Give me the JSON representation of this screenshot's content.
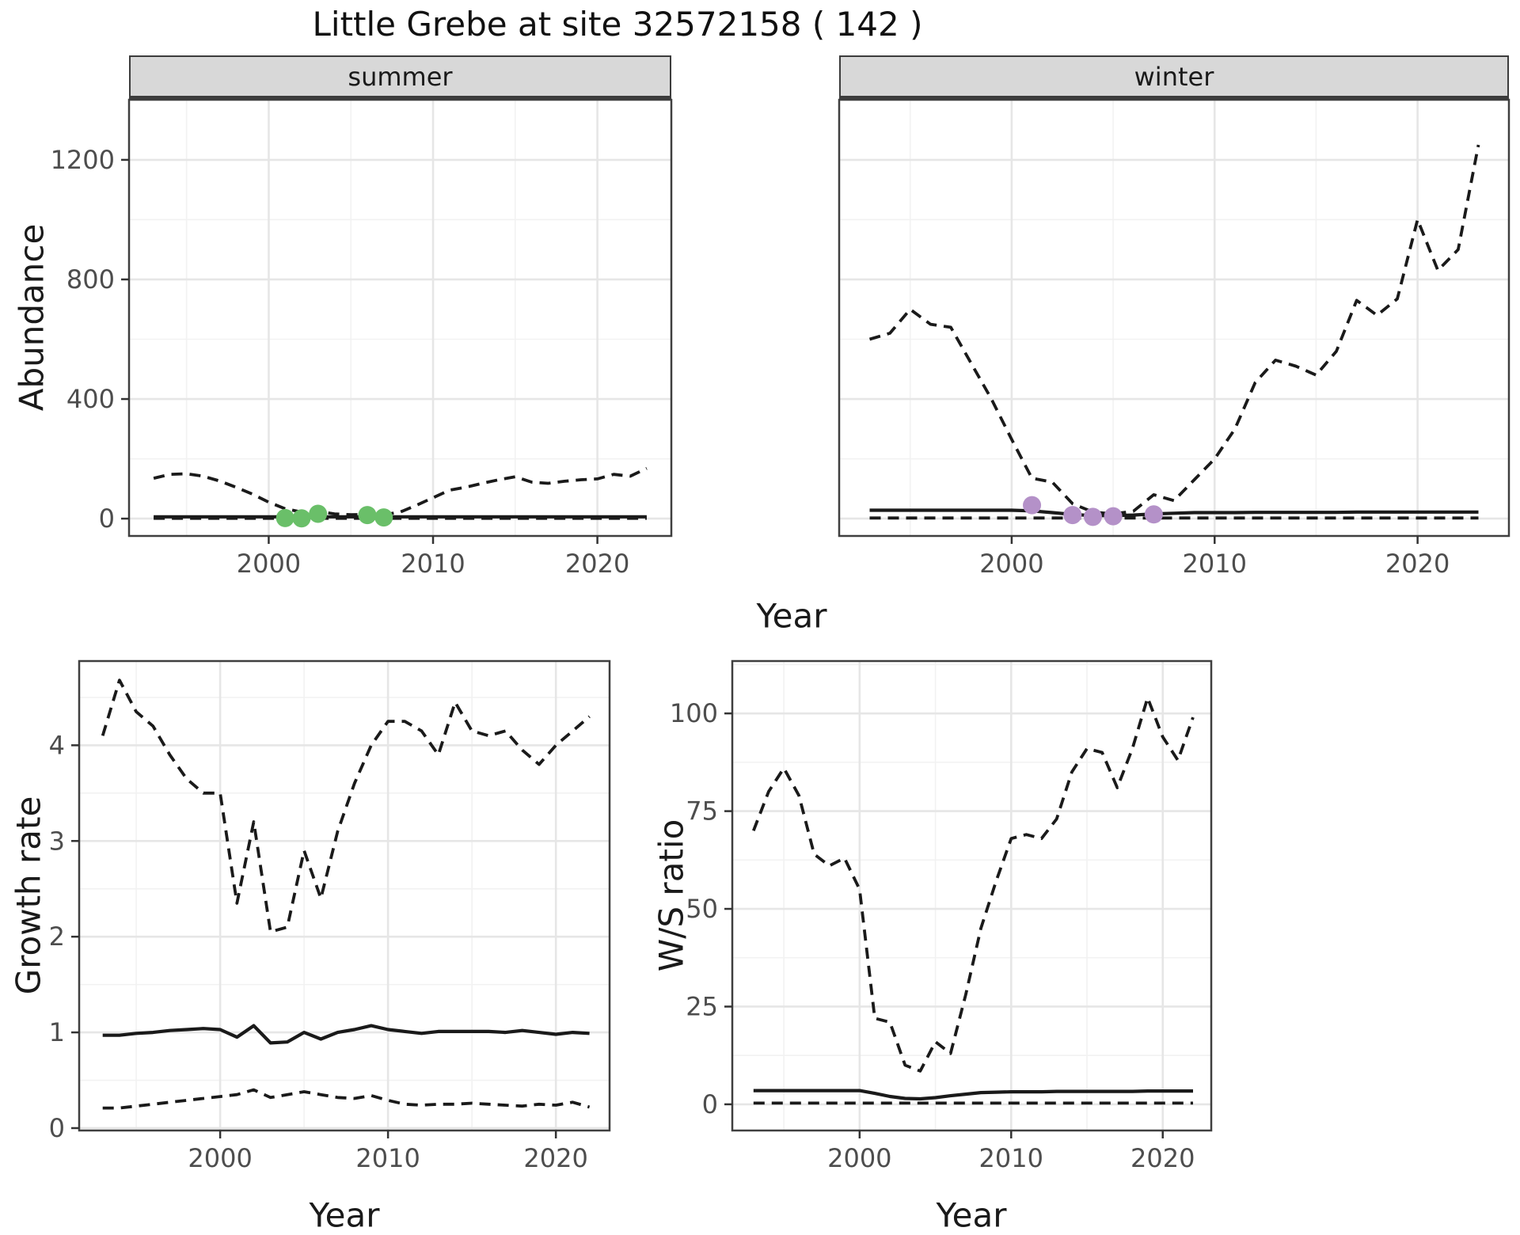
{
  "title": "Little Grebe at site 32572158 ( 142 )",
  "colors": {
    "line": "#1a1a1a",
    "summer_points": "#6abf69",
    "winter_points": "#b491c8",
    "grid_major": "#e6e6e6",
    "grid_minor": "#f2f2f2",
    "panel_border": "#3f3f3f",
    "tick": "#333333",
    "tick_text": "#4d4d4d",
    "strip_bg": "#d8d8d8"
  },
  "chart_data": [
    {
      "type": "line",
      "facet": "summer",
      "xlabel": "Year",
      "ylabel": "Abundance",
      "xlim": [
        1991.5,
        2024.5
      ],
      "ylim": [
        -58,
        1401
      ],
      "x_ticks": [
        2000,
        2010,
        2020
      ],
      "x_minor": [
        1995,
        2005,
        2015
      ],
      "y_ticks": [
        0,
        400,
        800,
        1200
      ],
      "y_minor": [
        200,
        600,
        1000
      ],
      "series": [
        {
          "name": "upper_95ci",
          "line": "dashed",
          "x": [
            1993,
            1994,
            1995,
            1996,
            1997,
            1998,
            1999,
            2000,
            2001,
            2002,
            2003,
            2004,
            2005,
            2006,
            2007,
            2008,
            2009,
            2010,
            2011,
            2012,
            2013,
            2014,
            2015,
            2016,
            2017,
            2018,
            2019,
            2020,
            2021,
            2022,
            2023
          ],
          "values": [
            135,
            148,
            150,
            142,
            126,
            105,
            82,
            55,
            33,
            22,
            25,
            16,
            13,
            14,
            13,
            22,
            45,
            70,
            95,
            105,
            118,
            130,
            140,
            122,
            118,
            125,
            130,
            133,
            148,
            142,
            168
          ]
        },
        {
          "name": "median",
          "line": "solid",
          "x": [
            1993,
            1994,
            1995,
            1996,
            1997,
            1998,
            1999,
            2000,
            2001,
            2002,
            2003,
            2004,
            2005,
            2006,
            2007,
            2008,
            2009,
            2010,
            2011,
            2012,
            2013,
            2014,
            2015,
            2016,
            2017,
            2018,
            2019,
            2020,
            2021,
            2022,
            2023
          ],
          "values": [
            6,
            6,
            6,
            6,
            6,
            6,
            6,
            6,
            6,
            6,
            6,
            6,
            6,
            6,
            6,
            6,
            6,
            6,
            6,
            6,
            6,
            6,
            6,
            6,
            6,
            6,
            6,
            6,
            6,
            6,
            6
          ]
        },
        {
          "name": "lower_95ci",
          "line": "dashed",
          "x": [
            1993,
            1994,
            1995,
            1996,
            1997,
            1998,
            1999,
            2000,
            2001,
            2002,
            2003,
            2004,
            2005,
            2006,
            2007,
            2008,
            2009,
            2010,
            2011,
            2012,
            2013,
            2014,
            2015,
            2016,
            2017,
            2018,
            2019,
            2020,
            2021,
            2022,
            2023
          ],
          "values": [
            1,
            1,
            1,
            1,
            1,
            1,
            1,
            1,
            1,
            1,
            1,
            1,
            1,
            1,
            1,
            1,
            1,
            1,
            1,
            1,
            1,
            1,
            1,
            1,
            1,
            1,
            1,
            1,
            1,
            1,
            1
          ]
        }
      ],
      "points": {
        "name": "observed-counts-summer",
        "color": "#6abf69",
        "x": [
          2001,
          2002,
          2003,
          2006,
          2007
        ],
        "values": [
          2,
          1,
          16,
          12,
          4
        ]
      }
    },
    {
      "type": "line",
      "facet": "winter",
      "xlabel": "Year",
      "ylabel": "Abundance",
      "xlim": [
        1991.5,
        2024.5
      ],
      "ylim": [
        -58,
        1401
      ],
      "x_ticks": [
        2000,
        2010,
        2020
      ],
      "x_minor": [
        1995,
        2005,
        2015
      ],
      "y_ticks": [
        0,
        400,
        800,
        1200
      ],
      "y_minor": [
        200,
        600,
        1000
      ],
      "series": [
        {
          "name": "upper_95ci",
          "line": "dashed",
          "x": [
            1993,
            1994,
            1995,
            1996,
            1997,
            1998,
            1999,
            2000,
            2001,
            2002,
            2003,
            2004,
            2005,
            2006,
            2007,
            2008,
            2009,
            2010,
            2011,
            2012,
            2013,
            2014,
            2015,
            2016,
            2017,
            2018,
            2019,
            2020,
            2021,
            2022,
            2023
          ],
          "values": [
            600,
            620,
            700,
            650,
            640,
            520,
            400,
            265,
            135,
            122,
            50,
            22,
            16,
            25,
            80,
            60,
            130,
            200,
            300,
            455,
            530,
            510,
            480,
            560,
            730,
            680,
            735,
            1000,
            830,
            900,
            1250
          ]
        },
        {
          "name": "median",
          "line": "solid",
          "x": [
            1993,
            1994,
            1995,
            1996,
            1997,
            1998,
            1999,
            2000,
            2001,
            2002,
            2003,
            2004,
            2005,
            2006,
            2007,
            2008,
            2009,
            2010,
            2011,
            2012,
            2013,
            2014,
            2015,
            2016,
            2017,
            2018,
            2019,
            2020,
            2021,
            2022,
            2023
          ],
          "values": [
            28,
            28,
            28,
            28,
            28,
            28,
            28,
            28,
            26,
            20,
            14,
            10,
            10,
            12,
            16,
            18,
            20,
            20,
            20,
            21,
            21,
            21,
            21,
            21,
            22,
            22,
            22,
            22,
            22,
            22,
            22
          ]
        },
        {
          "name": "lower_95ci",
          "line": "dashed",
          "x": [
            1993,
            1994,
            1995,
            1996,
            1997,
            1998,
            1999,
            2000,
            2001,
            2002,
            2003,
            2004,
            2005,
            2006,
            2007,
            2008,
            2009,
            2010,
            2011,
            2012,
            2013,
            2014,
            2015,
            2016,
            2017,
            2018,
            2019,
            2020,
            2021,
            2022,
            2023
          ],
          "values": [
            2,
            2,
            2,
            2,
            2,
            2,
            2,
            2,
            2,
            2,
            2,
            2,
            2,
            2,
            2,
            2,
            2,
            2,
            2,
            2,
            2,
            2,
            2,
            2,
            2,
            2,
            2,
            2,
            2,
            2,
            2
          ]
        }
      ],
      "points": {
        "name": "observed-counts-winter",
        "color": "#b491c8",
        "x": [
          2001,
          2003,
          2004,
          2005,
          2007
        ],
        "values": [
          45,
          12,
          6,
          8,
          14
        ]
      }
    },
    {
      "type": "line",
      "facet": "",
      "xlabel": "Year",
      "ylabel": "Growth rate",
      "xlim": [
        1991.6,
        2023.2
      ],
      "ylim": [
        -0.025,
        4.88
      ],
      "x_ticks": [
        2000,
        2010,
        2020
      ],
      "x_minor": [
        1995,
        2005,
        2015
      ],
      "y_ticks": [
        0,
        1,
        2,
        3,
        4
      ],
      "y_minor": [
        0.5,
        1.5,
        2.5,
        3.5,
        4.5
      ],
      "series": [
        {
          "name": "upper_95ci",
          "line": "dashed",
          "x": [
            1993,
            1994,
            1995,
            1996,
            1997,
            1998,
            1999,
            2000,
            2001,
            2002,
            2003,
            2004,
            2005,
            2006,
            2007,
            2008,
            2009,
            2010,
            2011,
            2012,
            2013,
            2014,
            2015,
            2016,
            2017,
            2018,
            2019,
            2020,
            2021,
            2022
          ],
          "values": [
            4.1,
            4.68,
            4.35,
            4.2,
            3.9,
            3.65,
            3.5,
            3.5,
            2.35,
            3.2,
            2.05,
            2.1,
            2.9,
            2.4,
            3.1,
            3.6,
            4.0,
            4.25,
            4.25,
            4.15,
            3.9,
            4.45,
            4.15,
            4.1,
            4.15,
            3.95,
            3.8,
            4.0,
            4.15,
            4.3
          ]
        },
        {
          "name": "median",
          "line": "solid",
          "x": [
            1993,
            1994,
            1995,
            1996,
            1997,
            1998,
            1999,
            2000,
            2001,
            2002,
            2003,
            2004,
            2005,
            2006,
            2007,
            2008,
            2009,
            2010,
            2011,
            2012,
            2013,
            2014,
            2015,
            2016,
            2017,
            2018,
            2019,
            2020,
            2021,
            2022
          ],
          "values": [
            0.97,
            0.97,
            0.99,
            1.0,
            1.02,
            1.03,
            1.04,
            1.03,
            0.95,
            1.07,
            0.89,
            0.9,
            1.0,
            0.93,
            1.0,
            1.03,
            1.07,
            1.03,
            1.01,
            0.99,
            1.01,
            1.01,
            1.01,
            1.01,
            1.0,
            1.02,
            1.0,
            0.98,
            1.0,
            0.99
          ]
        },
        {
          "name": "lower_95ci",
          "line": "dashed",
          "x": [
            1993,
            1994,
            1995,
            1996,
            1997,
            1998,
            1999,
            2000,
            2001,
            2002,
            2003,
            2004,
            2005,
            2006,
            2007,
            2008,
            2009,
            2010,
            2011,
            2012,
            2013,
            2014,
            2015,
            2016,
            2017,
            2018,
            2019,
            2020,
            2021,
            2022
          ],
          "values": [
            0.21,
            0.21,
            0.23,
            0.25,
            0.27,
            0.29,
            0.31,
            0.33,
            0.35,
            0.4,
            0.32,
            0.35,
            0.38,
            0.35,
            0.32,
            0.31,
            0.34,
            0.29,
            0.25,
            0.24,
            0.25,
            0.25,
            0.26,
            0.25,
            0.24,
            0.23,
            0.25,
            0.24,
            0.27,
            0.22
          ]
        }
      ]
    },
    {
      "type": "line",
      "facet": "",
      "xlabel": "Year",
      "ylabel": "W/S ratio",
      "xlim": [
        1991.6,
        2023.2
      ],
      "ylim": [
        -6.7,
        113.4
      ],
      "x_ticks": [
        2000,
        2010,
        2020
      ],
      "x_minor": [
        1995,
        2005,
        2015
      ],
      "y_ticks": [
        0,
        25,
        50,
        75,
        100
      ],
      "y_minor": [
        12.5,
        37.5,
        62.5,
        87.5,
        112.5
      ],
      "series": [
        {
          "name": "upper_95ci",
          "line": "dashed",
          "x": [
            1993,
            1994,
            1995,
            1996,
            1997,
            1998,
            1999,
            2000,
            2001,
            2002,
            2003,
            2004,
            2005,
            2006,
            2007,
            2008,
            2009,
            2010,
            2011,
            2012,
            2013,
            2014,
            2015,
            2016,
            2017,
            2018,
            2019,
            2020,
            2021,
            2022
          ],
          "values": [
            70,
            80,
            86,
            79,
            64,
            61,
            63,
            55,
            22,
            21,
            10,
            8.5,
            16,
            13,
            28,
            45,
            57,
            68,
            69,
            68,
            73,
            85,
            91,
            90,
            81,
            91,
            104,
            94,
            88,
            99
          ]
        },
        {
          "name": "median",
          "line": "solid",
          "x": [
            1993,
            1994,
            1995,
            1996,
            1997,
            1998,
            1999,
            2000,
            2001,
            2002,
            2003,
            2004,
            2005,
            2006,
            2007,
            2008,
            2009,
            2010,
            2011,
            2012,
            2013,
            2014,
            2015,
            2016,
            2017,
            2018,
            2019,
            2020,
            2021,
            2022
          ],
          "values": [
            3.5,
            3.5,
            3.5,
            3.5,
            3.5,
            3.5,
            3.5,
            3.5,
            2.8,
            2.0,
            1.5,
            1.4,
            1.7,
            2.2,
            2.6,
            3.0,
            3.1,
            3.2,
            3.2,
            3.2,
            3.3,
            3.3,
            3.3,
            3.3,
            3.3,
            3.3,
            3.4,
            3.4,
            3.4,
            3.4
          ]
        },
        {
          "name": "lower_95ci",
          "line": "dashed",
          "x": [
            1993,
            1994,
            1995,
            1996,
            1997,
            1998,
            1999,
            2000,
            2001,
            2002,
            2003,
            2004,
            2005,
            2006,
            2007,
            2008,
            2009,
            2010,
            2011,
            2012,
            2013,
            2014,
            2015,
            2016,
            2017,
            2018,
            2019,
            2020,
            2021,
            2022
          ],
          "values": [
            0.3,
            0.3,
            0.3,
            0.3,
            0.3,
            0.3,
            0.3,
            0.3,
            0.3,
            0.3,
            0.3,
            0.3,
            0.3,
            0.3,
            0.3,
            0.3,
            0.3,
            0.3,
            0.3,
            0.3,
            0.3,
            0.3,
            0.3,
            0.3,
            0.3,
            0.3,
            0.3,
            0.3,
            0.3,
            0.3
          ]
        }
      ]
    }
  ]
}
